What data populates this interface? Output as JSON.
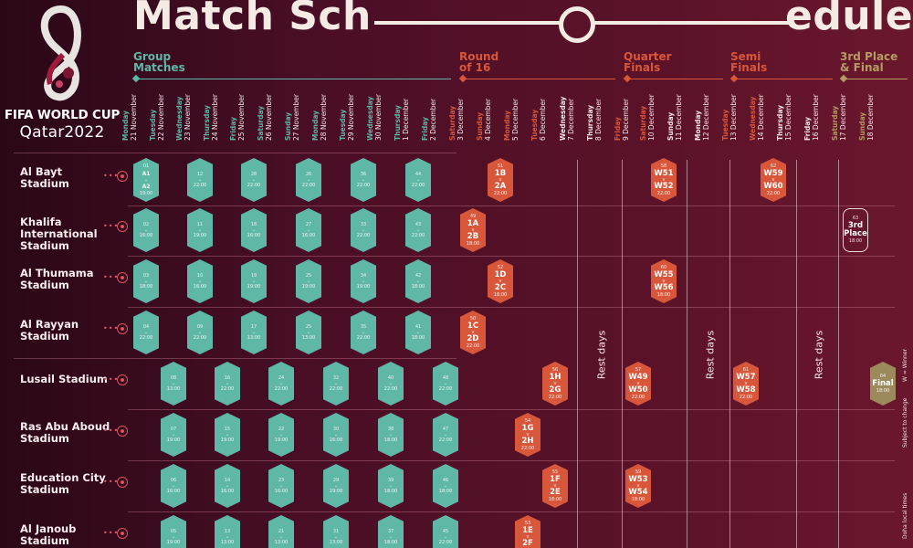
{
  "title": {
    "left": "Match Sch",
    "right": "edule"
  },
  "logo": {
    "line1": "FIFA WORLD CUP",
    "line2": "Qatar2022"
  },
  "colors": {
    "group": "#5fb7a6",
    "knockout": "#d8573a",
    "final": "#9c8a5d",
    "background": "#4a0e26"
  },
  "stages": [
    {
      "label1": "Group",
      "label2": "Matches",
      "color": "#5fb7a6"
    },
    {
      "label1": "Round",
      "label2": "of 16",
      "color": "#d8573a"
    },
    {
      "label1": "Quarter",
      "label2": "Finals",
      "color": "#d8573a"
    },
    {
      "label1": "Semi",
      "label2": "Finals",
      "color": "#d8573a"
    },
    {
      "label1": "3rd Place",
      "label2": "& Final",
      "color": "#b59b63"
    }
  ],
  "dates": [
    {
      "day": "Monday",
      "date": "21 November",
      "color": "#5fb7a6"
    },
    {
      "day": "Tuesday",
      "date": "22 November",
      "color": "#5fb7a6"
    },
    {
      "day": "Wednesday",
      "date": "23 November",
      "color": "#5fb7a6"
    },
    {
      "day": "Thursday",
      "date": "24 November",
      "color": "#5fb7a6"
    },
    {
      "day": "Friday",
      "date": "25 November",
      "color": "#5fb7a6"
    },
    {
      "day": "Saturday",
      "date": "26 November",
      "color": "#5fb7a6"
    },
    {
      "day": "Sunday",
      "date": "27 November",
      "color": "#5fb7a6"
    },
    {
      "day": "Monday",
      "date": "28 November",
      "color": "#5fb7a6"
    },
    {
      "day": "Tuesday",
      "date": "29 November",
      "color": "#5fb7a6"
    },
    {
      "day": "Wednesday",
      "date": "30 November",
      "color": "#5fb7a6"
    },
    {
      "day": "Thursday",
      "date": "1 December",
      "color": "#5fb7a6"
    },
    {
      "day": "Friday",
      "date": "2 December",
      "color": "#5fb7a6"
    },
    {
      "day": "Saturday",
      "date": "3 December",
      "color": "#d8573a"
    },
    {
      "day": "Sunday",
      "date": "4 December",
      "color": "#d8573a"
    },
    {
      "day": "Monday",
      "date": "5 December",
      "color": "#d8573a"
    },
    {
      "day": "Tuesday",
      "date": "6 December",
      "color": "#d8573a"
    },
    {
      "day": "Wednesday",
      "date": "7 December",
      "color": "#f3e6e9"
    },
    {
      "day": "Thursday",
      "date": "8 December",
      "color": "#f3e6e9"
    },
    {
      "day": "Friday",
      "date": "9 December",
      "color": "#d8573a"
    },
    {
      "day": "Saturday",
      "date": "10 December",
      "color": "#d8573a"
    },
    {
      "day": "Sunday",
      "date": "11 December",
      "color": "#f3e6e9"
    },
    {
      "day": "Monday",
      "date": "12 December",
      "color": "#f3e6e9"
    },
    {
      "day": "Tuesday",
      "date": "13 December",
      "color": "#d8573a"
    },
    {
      "day": "Wednesday",
      "date": "14 December",
      "color": "#d8573a"
    },
    {
      "day": "Thursday",
      "date": "15 December",
      "color": "#f3e6e9"
    },
    {
      "day": "Friday",
      "date": "16 December",
      "color": "#f3e6e9"
    },
    {
      "day": "Saturday",
      "date": "17 December",
      "color": "#b59b63"
    },
    {
      "day": "Sunday",
      "date": "18 December",
      "color": "#b59b63"
    }
  ],
  "stadiums": [
    {
      "name": "Al Bayt Stadium"
    },
    {
      "name": "Khalifa International Stadium"
    },
    {
      "name": "Al Thumama Stadium"
    },
    {
      "name": "Al Rayyan Stadium"
    },
    {
      "name": "Lusail Stadium"
    },
    {
      "name": "Ras Abu Aboud Stadium"
    },
    {
      "name": "Education City Stadium"
    },
    {
      "name": "Al Janoub Stadium"
    }
  ],
  "rest_label": "Rest days",
  "matches": [
    {
      "row": 0,
      "col": 0,
      "type": "group",
      "num": "01",
      "home": "A1",
      "away": "A2",
      "time": "19:00"
    },
    {
      "row": 0,
      "col": 2,
      "type": "group",
      "num": "12",
      "home": "",
      "away": "",
      "time": "22:00"
    },
    {
      "row": 0,
      "col": 4,
      "type": "group",
      "num": "28",
      "home": "",
      "away": "",
      "time": "22:00"
    },
    {
      "row": 0,
      "col": 6,
      "type": "group",
      "num": "26",
      "home": "",
      "away": "",
      "time": "22:00"
    },
    {
      "row": 0,
      "col": 8,
      "type": "group",
      "num": "36",
      "home": "",
      "away": "",
      "time": "22:00"
    },
    {
      "row": 0,
      "col": 10,
      "type": "group",
      "num": "44",
      "home": "",
      "away": "",
      "time": "22:00"
    },
    {
      "row": 0,
      "col": 13,
      "type": "ko",
      "num": "51",
      "home": "1B",
      "away": "2A",
      "time": "22:00"
    },
    {
      "row": 0,
      "col": 19,
      "type": "ko",
      "num": "58",
      "home": "W51",
      "away": "W52",
      "time": "22:00"
    },
    {
      "row": 0,
      "col": 23,
      "type": "ko",
      "num": "62",
      "home": "W59",
      "away": "W60",
      "time": "22:00"
    },
    {
      "row": 1,
      "col": 0,
      "type": "group",
      "num": "02",
      "home": "",
      "away": "",
      "time": "16:00"
    },
    {
      "row": 1,
      "col": 2,
      "type": "group",
      "num": "11",
      "home": "",
      "away": "",
      "time": "19:00"
    },
    {
      "row": 1,
      "col": 4,
      "type": "group",
      "num": "18",
      "home": "",
      "away": "",
      "time": "16:00"
    },
    {
      "row": 1,
      "col": 6,
      "type": "group",
      "num": "27",
      "home": "",
      "away": "",
      "time": "16:00"
    },
    {
      "row": 1,
      "col": 8,
      "type": "group",
      "num": "33",
      "home": "",
      "away": "",
      "time": "22:00"
    },
    {
      "row": 1,
      "col": 10,
      "type": "group",
      "num": "43",
      "home": "",
      "away": "",
      "time": "22:00"
    },
    {
      "row": 1,
      "col": 12,
      "type": "ko",
      "num": "49",
      "home": "1A",
      "away": "2B",
      "time": "18:00"
    },
    {
      "row": 1,
      "col": 26,
      "type": "third",
      "num": "63",
      "home": "3rd",
      "away": "Place",
      "time": "18:00"
    },
    {
      "row": 2,
      "col": 0,
      "type": "group",
      "num": "03",
      "home": "",
      "away": "",
      "time": "18:00"
    },
    {
      "row": 2,
      "col": 2,
      "type": "group",
      "num": "10",
      "home": "",
      "away": "",
      "time": "16:00"
    },
    {
      "row": 2,
      "col": 4,
      "type": "group",
      "num": "19",
      "home": "",
      "away": "",
      "time": "19:00"
    },
    {
      "row": 2,
      "col": 6,
      "type": "group",
      "num": "25",
      "home": "",
      "away": "",
      "time": "19:00"
    },
    {
      "row": 2,
      "col": 8,
      "type": "group",
      "num": "34",
      "home": "",
      "away": "",
      "time": "19:00"
    },
    {
      "row": 2,
      "col": 10,
      "type": "group",
      "num": "42",
      "home": "",
      "away": "",
      "time": "18:00"
    },
    {
      "row": 2,
      "col": 13,
      "type": "ko",
      "num": "52",
      "home": "1D",
      "away": "2C",
      "time": "18:00"
    },
    {
      "row": 2,
      "col": 19,
      "type": "ko",
      "num": "60",
      "home": "W55",
      "away": "W56",
      "time": "18:00"
    },
    {
      "row": 3,
      "col": 0,
      "type": "group",
      "num": "04",
      "home": "",
      "away": "",
      "time": "22:00"
    },
    {
      "row": 3,
      "col": 2,
      "type": "group",
      "num": "09",
      "home": "",
      "away": "",
      "time": "22:00"
    },
    {
      "row": 3,
      "col": 4,
      "type": "group",
      "num": "17",
      "home": "",
      "away": "",
      "time": "13:00"
    },
    {
      "row": 3,
      "col": 6,
      "type": "group",
      "num": "25",
      "home": "",
      "away": "",
      "time": "13:00"
    },
    {
      "row": 3,
      "col": 8,
      "type": "group",
      "num": "35",
      "home": "",
      "away": "",
      "time": "22:00"
    },
    {
      "row": 3,
      "col": 10,
      "type": "group",
      "num": "41",
      "home": "",
      "away": "",
      "time": "18:00"
    },
    {
      "row": 3,
      "col": 12,
      "type": "ko",
      "num": "50",
      "home": "1C",
      "away": "2D",
      "time": "22:00"
    },
    {
      "row": 4,
      "col": 1,
      "type": "group",
      "num": "08",
      "home": "",
      "away": "",
      "time": "13:00"
    },
    {
      "row": 4,
      "col": 3,
      "type": "group",
      "num": "16",
      "home": "",
      "away": "",
      "time": "22:00"
    },
    {
      "row": 4,
      "col": 5,
      "type": "group",
      "num": "24",
      "home": "",
      "away": "",
      "time": "22:00"
    },
    {
      "row": 4,
      "col": 7,
      "type": "group",
      "num": "32",
      "home": "",
      "away": "",
      "time": "22:00"
    },
    {
      "row": 4,
      "col": 9,
      "type": "group",
      "num": "40",
      "home": "",
      "away": "",
      "time": "22:00"
    },
    {
      "row": 4,
      "col": 11,
      "type": "group",
      "num": "48",
      "home": "",
      "away": "",
      "time": "22:00"
    },
    {
      "row": 4,
      "col": 15,
      "type": "ko",
      "num": "56",
      "home": "1H",
      "away": "2G",
      "time": "22:00"
    },
    {
      "row": 4,
      "col": 18,
      "type": "ko",
      "num": "57",
      "home": "W49",
      "away": "W50",
      "time": "22:00"
    },
    {
      "row": 4,
      "col": 22,
      "type": "ko",
      "num": "61",
      "home": "W57",
      "away": "W58",
      "time": "22:00"
    },
    {
      "row": 4,
      "col": 27,
      "type": "final",
      "num": "64",
      "home": "Final",
      "away": "",
      "time": "18:00"
    },
    {
      "row": 5,
      "col": 1,
      "type": "group",
      "num": "07",
      "home": "",
      "away": "",
      "time": "19:00"
    },
    {
      "row": 5,
      "col": 3,
      "type": "group",
      "num": "15",
      "home": "",
      "away": "",
      "time": "19:00"
    },
    {
      "row": 5,
      "col": 5,
      "type": "group",
      "num": "22",
      "home": "",
      "away": "",
      "time": "19:00"
    },
    {
      "row": 5,
      "col": 7,
      "type": "group",
      "num": "30",
      "home": "",
      "away": "",
      "time": "16:00"
    },
    {
      "row": 5,
      "col": 9,
      "type": "group",
      "num": "38",
      "home": "",
      "away": "",
      "time": "18:00"
    },
    {
      "row": 5,
      "col": 11,
      "type": "group",
      "num": "47",
      "home": "",
      "away": "",
      "time": "22:00"
    },
    {
      "row": 5,
      "col": 14,
      "type": "ko",
      "num": "54",
      "home": "1G",
      "away": "2H",
      "time": "22:00"
    },
    {
      "row": 6,
      "col": 1,
      "type": "group",
      "num": "06",
      "home": "",
      "away": "",
      "time": "16:00"
    },
    {
      "row": 6,
      "col": 3,
      "type": "group",
      "num": "14",
      "home": "",
      "away": "",
      "time": "16:00"
    },
    {
      "row": 6,
      "col": 5,
      "type": "group",
      "num": "23",
      "home": "",
      "away": "",
      "time": "16:00"
    },
    {
      "row": 6,
      "col": 7,
      "type": "group",
      "num": "29",
      "home": "",
      "away": "",
      "time": "19:00"
    },
    {
      "row": 6,
      "col": 9,
      "type": "group",
      "num": "39",
      "home": "",
      "away": "",
      "time": "18:00"
    },
    {
      "row": 6,
      "col": 11,
      "type": "group",
      "num": "46",
      "home": "",
      "away": "",
      "time": "18:00"
    },
    {
      "row": 6,
      "col": 15,
      "type": "ko",
      "num": "55",
      "home": "1F",
      "away": "2E",
      "time": "18:00"
    },
    {
      "row": 6,
      "col": 18,
      "type": "ko",
      "num": "59",
      "home": "W53",
      "away": "W54",
      "time": "18:00"
    },
    {
      "row": 7,
      "col": 1,
      "type": "group",
      "num": "05",
      "home": "",
      "away": "",
      "time": "19:00"
    },
    {
      "row": 7,
      "col": 3,
      "type": "group",
      "num": "13",
      "home": "",
      "away": "",
      "time": "13:00"
    },
    {
      "row": 7,
      "col": 5,
      "type": "group",
      "num": "21",
      "home": "",
      "away": "",
      "time": "13:00"
    },
    {
      "row": 7,
      "col": 7,
      "type": "group",
      "num": "31",
      "home": "",
      "away": "",
      "time": "13:00"
    },
    {
      "row": 7,
      "col": 9,
      "type": "group",
      "num": "37",
      "home": "",
      "away": "",
      "time": "18:00"
    },
    {
      "row": 7,
      "col": 11,
      "type": "group",
      "num": "45",
      "home": "",
      "away": "",
      "time": "22:00"
    },
    {
      "row": 7,
      "col": 14,
      "type": "ko",
      "num": "53",
      "home": "1E",
      "away": "2F",
      "time": "18:00"
    }
  ],
  "side_notes": [
    "W = Winner",
    "Subject to change",
    "Doha local times"
  ]
}
